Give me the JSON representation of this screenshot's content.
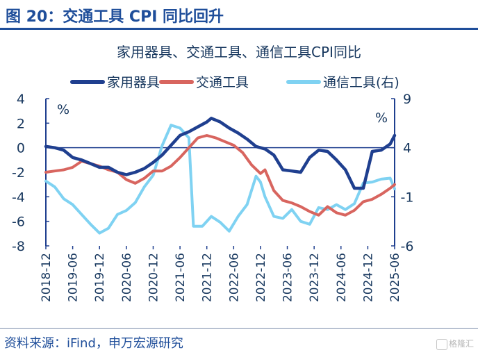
{
  "figure": {
    "title": "图 20：交通工具 CPI 同比回升",
    "source": "资料来源：iFind，申万宏源研究",
    "watermark": "格隆汇"
  },
  "chart_data": {
    "type": "line",
    "title": "家用器具、交通工具、通信工具CPI同比",
    "left_axis": {
      "unit": "%",
      "ylim": [
        -8,
        4
      ],
      "ticks": [
        "4",
        "2",
        "0",
        "-2",
        "-4",
        "-6",
        "-8"
      ]
    },
    "right_axis": {
      "unit": "%",
      "ylim": [
        -6,
        9
      ],
      "ticks": [
        "9",
        "4",
        "-1",
        "-6"
      ]
    },
    "x_ticks": [
      "2018-12",
      "2019-06",
      "2019-12",
      "2020-06",
      "2020-12",
      "2021-06",
      "2021-12",
      "2022-06",
      "2022-12",
      "2023-06",
      "2023-12",
      "2024-06",
      "2024-12",
      "2025-06"
    ],
    "x_range": [
      "2018-12",
      "2025-06"
    ],
    "legend_position": "top",
    "grid": false,
    "series": [
      {
        "name": "家用器具",
        "axis": "left",
        "color": "#1f3f8f",
        "points": [
          [
            "2018-12",
            0.1
          ],
          [
            "2019-02",
            0.0
          ],
          [
            "2019-04",
            -0.2
          ],
          [
            "2019-06",
            -0.8
          ],
          [
            "2019-08",
            -1.0
          ],
          [
            "2019-10",
            -1.3
          ],
          [
            "2019-12",
            -1.6
          ],
          [
            "2020-02",
            -1.6
          ],
          [
            "2020-04",
            -2.0
          ],
          [
            "2020-06",
            -2.2
          ],
          [
            "2020-08",
            -2.0
          ],
          [
            "2020-10",
            -1.7
          ],
          [
            "2020-12",
            -1.2
          ],
          [
            "2021-02",
            -0.6
          ],
          [
            "2021-04",
            0.2
          ],
          [
            "2021-06",
            1.0
          ],
          [
            "2021-08",
            1.3
          ],
          [
            "2021-10",
            1.7
          ],
          [
            "2021-12",
            2.1
          ],
          [
            "2022-01",
            2.4
          ],
          [
            "2022-03",
            2.1
          ],
          [
            "2022-05",
            1.6
          ],
          [
            "2022-07",
            1.2
          ],
          [
            "2022-09",
            0.7
          ],
          [
            "2022-11",
            0.1
          ],
          [
            "2023-01",
            -0.1
          ],
          [
            "2023-03",
            -0.6
          ],
          [
            "2023-05",
            -1.8
          ],
          [
            "2023-07",
            -1.9
          ],
          [
            "2023-09",
            -2.0
          ],
          [
            "2023-11",
            -0.8
          ],
          [
            "2024-01",
            -0.2
          ],
          [
            "2024-03",
            -0.3
          ],
          [
            "2024-05",
            -1.0
          ],
          [
            "2024-07",
            -1.8
          ],
          [
            "2024-09",
            -3.3
          ],
          [
            "2024-11",
            -3.3
          ],
          [
            "2025-01",
            -0.3
          ],
          [
            "2025-03",
            -0.2
          ],
          [
            "2025-05",
            0.3
          ],
          [
            "2025-06",
            1.0
          ]
        ]
      },
      {
        "name": "交通工具",
        "axis": "left",
        "color": "#d8655f",
        "points": [
          [
            "2018-12",
            -2.0
          ],
          [
            "2019-02",
            -1.9
          ],
          [
            "2019-04",
            -1.8
          ],
          [
            "2019-06",
            -1.6
          ],
          [
            "2019-08",
            -1.1
          ],
          [
            "2019-10",
            -1.3
          ],
          [
            "2019-12",
            -1.5
          ],
          [
            "2020-02",
            -1.8
          ],
          [
            "2020-04",
            -2.0
          ],
          [
            "2020-06",
            -2.6
          ],
          [
            "2020-08",
            -2.9
          ],
          [
            "2020-10",
            -2.5
          ],
          [
            "2020-12",
            -1.9
          ],
          [
            "2021-02",
            -1.9
          ],
          [
            "2021-04",
            -1.5
          ],
          [
            "2021-06",
            -0.8
          ],
          [
            "2021-08",
            0.0
          ],
          [
            "2021-10",
            0.8
          ],
          [
            "2021-12",
            1.0
          ],
          [
            "2022-02",
            0.8
          ],
          [
            "2022-04",
            0.5
          ],
          [
            "2022-06",
            0.2
          ],
          [
            "2022-08",
            -0.4
          ],
          [
            "2022-10",
            -1.4
          ],
          [
            "2022-12",
            -2.1
          ],
          [
            "2023-01",
            -1.8
          ],
          [
            "2023-03",
            -3.5
          ],
          [
            "2023-05",
            -4.3
          ],
          [
            "2023-07",
            -4.5
          ],
          [
            "2023-09",
            -4.8
          ],
          [
            "2023-11",
            -5.2
          ],
          [
            "2024-01",
            -5.5
          ],
          [
            "2024-03",
            -4.8
          ],
          [
            "2024-05",
            -5.3
          ],
          [
            "2024-07",
            -5.5
          ],
          [
            "2024-09",
            -5.1
          ],
          [
            "2024-11",
            -4.4
          ],
          [
            "2025-01",
            -4.2
          ],
          [
            "2025-03",
            -3.8
          ],
          [
            "2025-05",
            -3.3
          ],
          [
            "2025-06",
            -3.0
          ]
        ]
      },
      {
        "name": "通信工具(右)",
        "axis": "right",
        "color": "#7fd2f2",
        "points": [
          [
            "2018-12",
            0.6
          ],
          [
            "2019-02",
            0.0
          ],
          [
            "2019-04",
            -1.2
          ],
          [
            "2019-06",
            -1.8
          ],
          [
            "2019-08",
            -2.8
          ],
          [
            "2019-10",
            -3.8
          ],
          [
            "2019-12",
            -4.7
          ],
          [
            "2020-02",
            -4.2
          ],
          [
            "2020-04",
            -2.8
          ],
          [
            "2020-06",
            -2.4
          ],
          [
            "2020-08",
            -1.6
          ],
          [
            "2020-10",
            0.0
          ],
          [
            "2020-12",
            1.2
          ],
          [
            "2021-02",
            4.2
          ],
          [
            "2021-04",
            6.3
          ],
          [
            "2021-06",
            6.0
          ],
          [
            "2021-08",
            5.0
          ],
          [
            "2021-09",
            -4.0
          ],
          [
            "2021-11",
            -4.0
          ],
          [
            "2022-01",
            -3.0
          ],
          [
            "2022-03",
            -3.6
          ],
          [
            "2022-05",
            -4.5
          ],
          [
            "2022-07",
            -3.0
          ],
          [
            "2022-09",
            -1.8
          ],
          [
            "2022-11",
            1.1
          ],
          [
            "2022-12",
            0.5
          ],
          [
            "2023-01",
            -1.0
          ],
          [
            "2023-03",
            -3.0
          ],
          [
            "2023-05",
            -3.2
          ],
          [
            "2023-07",
            -2.3
          ],
          [
            "2023-09",
            -3.5
          ],
          [
            "2023-11",
            -3.8
          ],
          [
            "2024-01",
            -2.1
          ],
          [
            "2024-03",
            -2.3
          ],
          [
            "2024-05",
            -1.8
          ],
          [
            "2024-07",
            -2.3
          ],
          [
            "2024-09",
            -1.7
          ],
          [
            "2024-11",
            0.4
          ],
          [
            "2025-01",
            0.5
          ],
          [
            "2025-03",
            0.8
          ],
          [
            "2025-05",
            0.9
          ],
          [
            "2025-06",
            -0.2
          ]
        ]
      }
    ]
  }
}
